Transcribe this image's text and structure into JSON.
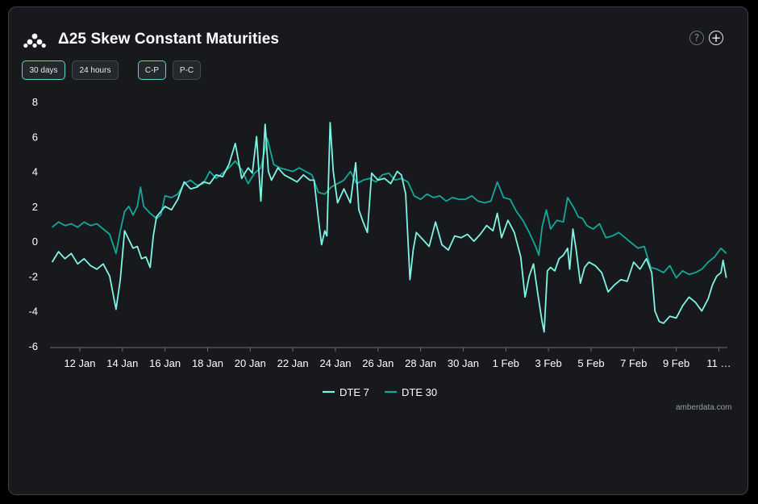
{
  "header": {
    "title": "Δ25 Skew Constant Maturities",
    "help_glyph": "?",
    "add_glyph": "+",
    "logo_icon": "amberdata-logo",
    "help_icon": "question-circle-icon",
    "add_icon": "plus-circle-icon"
  },
  "controls": {
    "range_buttons": [
      {
        "label": "30 days",
        "active": true
      },
      {
        "label": "24 hours",
        "active": false
      }
    ],
    "mode_buttons": [
      {
        "label": "C-P",
        "active": true
      },
      {
        "label": "P-C",
        "active": false
      }
    ]
  },
  "footer": {
    "credit": "amberdata.com"
  },
  "colors": {
    "background": "#17191c",
    "dte7": "#7ff5e6",
    "dte30": "#14a89a",
    "accent_border": "#5fd5d0"
  },
  "chart_data": {
    "type": "line",
    "title": "",
    "xlabel": "",
    "ylabel": "",
    "ylim": [
      -6,
      8
    ],
    "yticks": [
      "8",
      "6",
      "4",
      "2",
      "0",
      "-2",
      "-4",
      "-6"
    ],
    "xticks": [
      "12 Jan",
      "14 Jan",
      "16 Jan",
      "18 Jan",
      "20 Jan",
      "22 Jan",
      "24 Jan",
      "26 Jan",
      "28 Jan",
      "30 Jan",
      "1 Feb",
      "3 Feb",
      "5 Feb",
      "7 Feb",
      "9 Feb",
      "11 …"
    ],
    "x_range_days": [
      10.6,
      42.4
    ],
    "grid": false,
    "legend": "bottom-center",
    "series": [
      {
        "name": "DTE 7",
        "color": "#7ff5e6",
        "points": [
          [
            10.7,
            -1.2
          ],
          [
            11.0,
            -0.6
          ],
          [
            11.3,
            -1.0
          ],
          [
            11.6,
            -0.7
          ],
          [
            11.9,
            -1.3
          ],
          [
            12.2,
            -1.0
          ],
          [
            12.5,
            -1.4
          ],
          [
            12.8,
            -1.6
          ],
          [
            13.1,
            -1.3
          ],
          [
            13.4,
            -2.0
          ],
          [
            13.7,
            -3.9
          ],
          [
            13.9,
            -2.2
          ],
          [
            14.1,
            0.6
          ],
          [
            14.3,
            0.1
          ],
          [
            14.5,
            -0.4
          ],
          [
            14.7,
            -0.3
          ],
          [
            14.9,
            -1.0
          ],
          [
            15.1,
            -0.9
          ],
          [
            15.3,
            -1.5
          ],
          [
            15.45,
            0.3
          ],
          [
            15.6,
            1.4
          ],
          [
            15.8,
            1.7
          ],
          [
            16.0,
            2.0
          ],
          [
            16.3,
            1.8
          ],
          [
            16.6,
            2.4
          ],
          [
            16.9,
            3.4
          ],
          [
            17.2,
            3.0
          ],
          [
            17.5,
            3.1
          ],
          [
            17.8,
            3.4
          ],
          [
            18.1,
            3.3
          ],
          [
            18.4,
            3.8
          ],
          [
            18.7,
            3.7
          ],
          [
            19.0,
            4.4
          ],
          [
            19.3,
            5.6
          ],
          [
            19.6,
            3.6
          ],
          [
            19.9,
            4.2
          ],
          [
            20.1,
            3.9
          ],
          [
            20.3,
            6.0
          ],
          [
            20.5,
            2.3
          ],
          [
            20.7,
            6.7
          ],
          [
            20.85,
            4.0
          ],
          [
            21.0,
            3.5
          ],
          [
            21.3,
            4.2
          ],
          [
            21.6,
            3.8
          ],
          [
            21.9,
            3.6
          ],
          [
            22.2,
            3.4
          ],
          [
            22.5,
            3.8
          ],
          [
            22.8,
            3.5
          ],
          [
            23.0,
            3.5
          ],
          [
            23.2,
            1.3
          ],
          [
            23.35,
            -0.2
          ],
          [
            23.5,
            0.6
          ],
          [
            23.6,
            0.3
          ],
          [
            23.75,
            6.8
          ],
          [
            23.9,
            4.0
          ],
          [
            24.1,
            2.2
          ],
          [
            24.4,
            3.0
          ],
          [
            24.7,
            2.2
          ],
          [
            24.95,
            4.5
          ],
          [
            25.1,
            1.8
          ],
          [
            25.3,
            1.1
          ],
          [
            25.5,
            0.5
          ],
          [
            25.7,
            3.9
          ],
          [
            26.0,
            3.5
          ],
          [
            26.3,
            3.6
          ],
          [
            26.6,
            3.3
          ],
          [
            26.9,
            4.0
          ],
          [
            27.1,
            3.8
          ],
          [
            27.3,
            2.7
          ],
          [
            27.5,
            -2.2
          ],
          [
            27.65,
            -0.5
          ],
          [
            27.8,
            0.5
          ],
          [
            28.1,
            0.1
          ],
          [
            28.4,
            -0.3
          ],
          [
            28.7,
            1.1
          ],
          [
            29.0,
            -0.2
          ],
          [
            29.3,
            -0.5
          ],
          [
            29.6,
            0.3
          ],
          [
            29.9,
            0.2
          ],
          [
            30.2,
            0.4
          ],
          [
            30.5,
            0.0
          ],
          [
            30.8,
            0.4
          ],
          [
            31.1,
            0.9
          ],
          [
            31.4,
            0.6
          ],
          [
            31.6,
            1.6
          ],
          [
            31.8,
            0.2
          ],
          [
            32.1,
            1.2
          ],
          [
            32.4,
            0.5
          ],
          [
            32.7,
            -0.9
          ],
          [
            32.9,
            -3.2
          ],
          [
            33.1,
            -2.0
          ],
          [
            33.3,
            -1.3
          ],
          [
            33.5,
            -3.0
          ],
          [
            33.7,
            -4.6
          ],
          [
            33.8,
            -5.2
          ],
          [
            33.95,
            -1.7
          ],
          [
            34.1,
            -1.5
          ],
          [
            34.3,
            -1.7
          ],
          [
            34.5,
            -1.0
          ],
          [
            34.7,
            -0.8
          ],
          [
            34.9,
            -0.4
          ],
          [
            35.0,
            -1.6
          ],
          [
            35.15,
            0.7
          ],
          [
            35.3,
            -0.5
          ],
          [
            35.5,
            -2.4
          ],
          [
            35.7,
            -1.5
          ],
          [
            35.9,
            -1.2
          ],
          [
            36.2,
            -1.4
          ],
          [
            36.5,
            -1.8
          ],
          [
            36.8,
            -2.9
          ],
          [
            37.1,
            -2.5
          ],
          [
            37.4,
            -2.2
          ],
          [
            37.7,
            -2.3
          ],
          [
            38.0,
            -1.2
          ],
          [
            38.3,
            -1.6
          ],
          [
            38.6,
            -1.0
          ],
          [
            38.85,
            -1.8
          ],
          [
            39.0,
            -4.0
          ],
          [
            39.2,
            -4.6
          ],
          [
            39.4,
            -4.7
          ],
          [
            39.7,
            -4.3
          ],
          [
            40.0,
            -4.4
          ],
          [
            40.3,
            -3.7
          ],
          [
            40.6,
            -3.2
          ],
          [
            40.9,
            -3.5
          ],
          [
            41.2,
            -4.0
          ],
          [
            41.5,
            -3.3
          ],
          [
            41.7,
            -2.5
          ],
          [
            41.9,
            -2.0
          ],
          [
            42.1,
            -1.8
          ],
          [
            42.2,
            -1.1
          ],
          [
            42.35,
            -2.1
          ]
        ]
      },
      {
        "name": "DTE 30",
        "color": "#14a89a",
        "points": [
          [
            10.7,
            0.8
          ],
          [
            11.0,
            1.1
          ],
          [
            11.3,
            0.9
          ],
          [
            11.6,
            1.0
          ],
          [
            11.9,
            0.8
          ],
          [
            12.2,
            1.1
          ],
          [
            12.5,
            0.9
          ],
          [
            12.8,
            1.0
          ],
          [
            13.1,
            0.7
          ],
          [
            13.4,
            0.4
          ],
          [
            13.7,
            -0.7
          ],
          [
            13.9,
            0.6
          ],
          [
            14.1,
            1.7
          ],
          [
            14.3,
            2.0
          ],
          [
            14.5,
            1.5
          ],
          [
            14.7,
            2.0
          ],
          [
            14.85,
            3.1
          ],
          [
            15.0,
            2.0
          ],
          [
            15.3,
            1.6
          ],
          [
            15.6,
            1.3
          ],
          [
            15.8,
            1.5
          ],
          [
            16.0,
            2.6
          ],
          [
            16.3,
            2.5
          ],
          [
            16.6,
            2.7
          ],
          [
            16.9,
            3.3
          ],
          [
            17.2,
            3.5
          ],
          [
            17.5,
            3.2
          ],
          [
            17.8,
            3.3
          ],
          [
            18.1,
            4.0
          ],
          [
            18.4,
            3.6
          ],
          [
            18.7,
            3.9
          ],
          [
            19.0,
            4.2
          ],
          [
            19.3,
            4.6
          ],
          [
            19.6,
            4.1
          ],
          [
            19.9,
            3.3
          ],
          [
            20.2,
            3.9
          ],
          [
            20.5,
            4.2
          ],
          [
            20.8,
            5.9
          ],
          [
            21.1,
            4.4
          ],
          [
            21.4,
            4.2
          ],
          [
            21.7,
            4.1
          ],
          [
            22.0,
            4.0
          ],
          [
            22.3,
            4.2
          ],
          [
            22.6,
            4.0
          ],
          [
            22.9,
            3.8
          ],
          [
            23.2,
            2.8
          ],
          [
            23.5,
            2.7
          ],
          [
            23.8,
            3.1
          ],
          [
            24.1,
            3.3
          ],
          [
            24.4,
            3.5
          ],
          [
            24.7,
            4.0
          ],
          [
            25.0,
            3.3
          ],
          [
            25.3,
            3.5
          ],
          [
            25.6,
            3.6
          ],
          [
            25.9,
            3.4
          ],
          [
            26.2,
            3.8
          ],
          [
            26.5,
            3.9
          ],
          [
            26.8,
            3.5
          ],
          [
            27.1,
            3.6
          ],
          [
            27.4,
            3.4
          ],
          [
            27.7,
            2.6
          ],
          [
            28.0,
            2.4
          ],
          [
            28.3,
            2.7
          ],
          [
            28.6,
            2.5
          ],
          [
            28.9,
            2.6
          ],
          [
            29.2,
            2.3
          ],
          [
            29.5,
            2.5
          ],
          [
            29.8,
            2.4
          ],
          [
            30.1,
            2.4
          ],
          [
            30.4,
            2.6
          ],
          [
            30.7,
            2.3
          ],
          [
            31.0,
            2.2
          ],
          [
            31.3,
            2.3
          ],
          [
            31.6,
            3.4
          ],
          [
            31.9,
            2.5
          ],
          [
            32.2,
            2.4
          ],
          [
            32.5,
            1.7
          ],
          [
            32.8,
            1.2
          ],
          [
            33.1,
            0.5
          ],
          [
            33.4,
            -0.3
          ],
          [
            33.55,
            -0.8
          ],
          [
            33.7,
            0.8
          ],
          [
            33.9,
            1.8
          ],
          [
            34.1,
            0.7
          ],
          [
            34.4,
            1.2
          ],
          [
            34.7,
            1.1
          ],
          [
            34.9,
            2.5
          ],
          [
            35.2,
            1.9
          ],
          [
            35.4,
            1.4
          ],
          [
            35.6,
            1.3
          ],
          [
            35.8,
            0.9
          ],
          [
            36.1,
            0.7
          ],
          [
            36.4,
            1.0
          ],
          [
            36.7,
            0.2
          ],
          [
            37.0,
            0.3
          ],
          [
            37.3,
            0.5
          ],
          [
            37.6,
            0.2
          ],
          [
            37.9,
            -0.1
          ],
          [
            38.2,
            -0.4
          ],
          [
            38.5,
            -0.3
          ],
          [
            38.8,
            -1.5
          ],
          [
            39.1,
            -1.6
          ],
          [
            39.4,
            -1.8
          ],
          [
            39.7,
            -1.4
          ],
          [
            40.0,
            -2.1
          ],
          [
            40.3,
            -1.7
          ],
          [
            40.6,
            -1.9
          ],
          [
            40.9,
            -1.8
          ],
          [
            41.2,
            -1.6
          ],
          [
            41.5,
            -1.2
          ],
          [
            41.8,
            -0.9
          ],
          [
            42.1,
            -0.4
          ],
          [
            42.35,
            -0.7
          ]
        ]
      }
    ]
  }
}
